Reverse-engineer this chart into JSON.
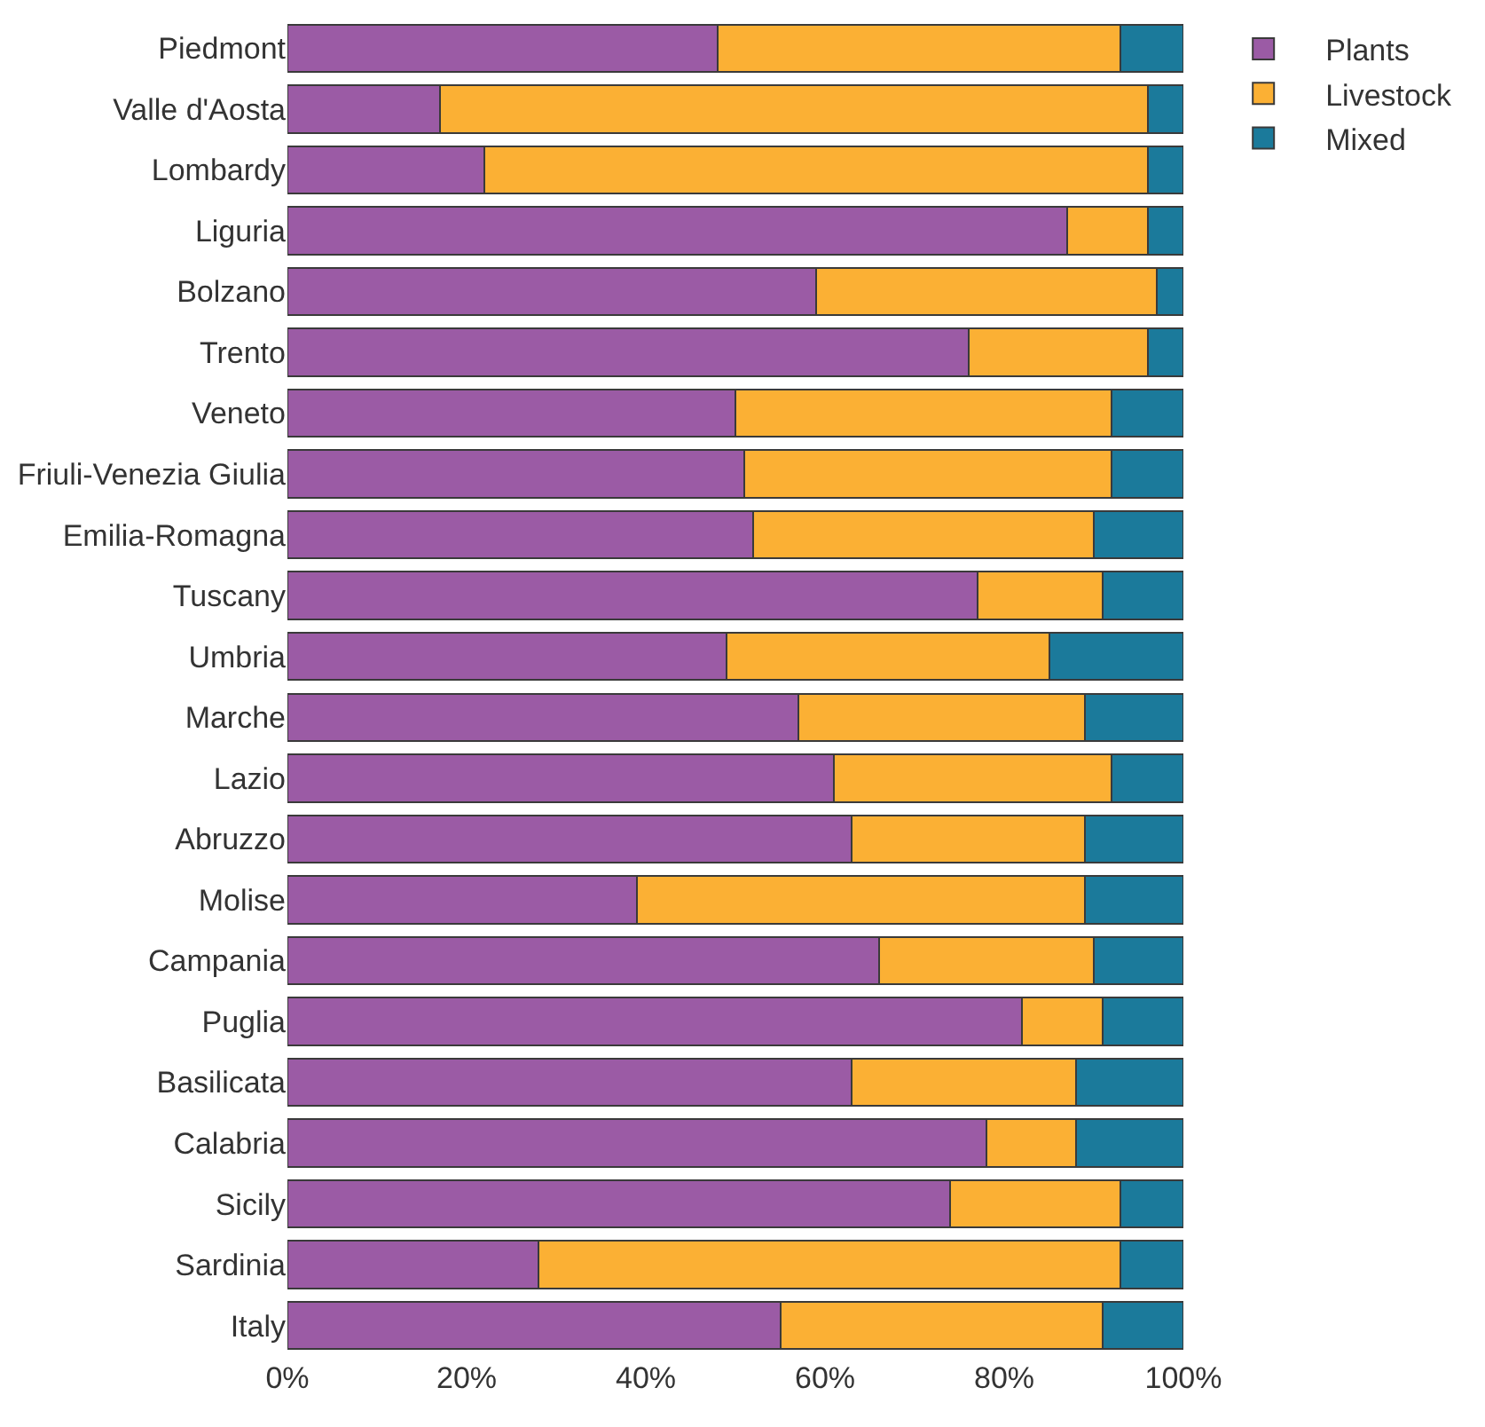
{
  "chart_data": {
    "type": "bar",
    "orientation": "horizontal",
    "stacked": true,
    "categories": [
      "Piedmont",
      "Valle d'Aosta",
      "Lombardy",
      "Liguria",
      "Bolzano",
      "Trento",
      "Veneto",
      "Friuli-Venezia Giulia",
      "Emilia-Romagna",
      "Tuscany",
      "Umbria",
      "Marche",
      "Lazio",
      "Abruzzo",
      "Molise",
      "Campania",
      "Puglia",
      "Basilicata",
      "Calabria",
      "Sicily",
      "Sardinia",
      "Italy"
    ],
    "series": [
      {
        "name": "Plants",
        "color": "#9b5ba5",
        "values": [
          48,
          17,
          22,
          87,
          59,
          76,
          50,
          51,
          52,
          77,
          49,
          57,
          61,
          63,
          39,
          66,
          82,
          63,
          78,
          74,
          28,
          55
        ]
      },
      {
        "name": "Livestock",
        "color": "#fbb034",
        "values": [
          45,
          79,
          74,
          9,
          38,
          20,
          42,
          41,
          38,
          14,
          36,
          32,
          31,
          26,
          50,
          24,
          9,
          25,
          10,
          19,
          65,
          36
        ]
      },
      {
        "name": "Mixed",
        "color": "#1b7a9b",
        "values": [
          7,
          4,
          4,
          4,
          3,
          4,
          8,
          8,
          10,
          9,
          15,
          11,
          8,
          11,
          11,
          10,
          9,
          12,
          12,
          7,
          7,
          9
        ]
      }
    ],
    "xlim": [
      0,
      100
    ],
    "xticks": [
      {
        "value": 0,
        "label": "0%"
      },
      {
        "value": 20,
        "label": "20%"
      },
      {
        "value": 40,
        "label": "40%"
      },
      {
        "value": 60,
        "label": "60%"
      },
      {
        "value": 80,
        "label": "80%"
      },
      {
        "value": 100,
        "label": "100%"
      }
    ],
    "legend": "top right"
  }
}
